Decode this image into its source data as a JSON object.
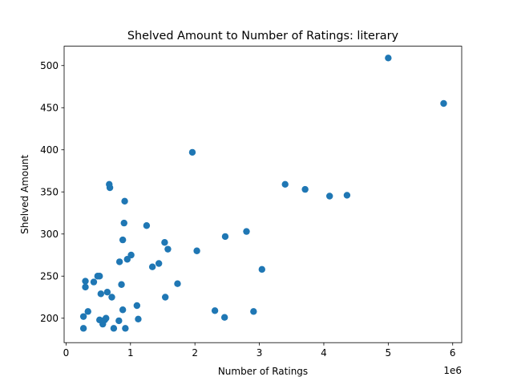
{
  "chart_data": {
    "type": "scatter",
    "title": "Shelved Amount to Number of Ratings: literary",
    "xlabel": "Number of Ratings",
    "ylabel": "Shelved Amount",
    "x_offset_label": "1e6",
    "xlim": [
      -30000,
      6140000
    ],
    "ylim": [
      171,
      523
    ],
    "xticks": [
      0,
      1000000,
      2000000,
      3000000,
      4000000,
      5000000,
      6000000
    ],
    "xtick_labels": [
      "0",
      "1",
      "2",
      "3",
      "4",
      "5",
      "6"
    ],
    "yticks": [
      200,
      250,
      300,
      350,
      400,
      450,
      500
    ],
    "ytick_labels": [
      "200",
      "250",
      "300",
      "350",
      "400",
      "450",
      "500"
    ],
    "grid": false,
    "legend": "none",
    "marker_color": "#1f77b4",
    "series": [
      {
        "points": [
          [
            270000,
            188
          ],
          [
            270000,
            202
          ],
          [
            300000,
            237
          ],
          [
            300000,
            244
          ],
          [
            340000,
            208
          ],
          [
            430000,
            243
          ],
          [
            490000,
            250
          ],
          [
            520000,
            250
          ],
          [
            520000,
            198
          ],
          [
            540000,
            229
          ],
          [
            570000,
            193
          ],
          [
            600000,
            198
          ],
          [
            620000,
            200
          ],
          [
            640000,
            231
          ],
          [
            670000,
            359
          ],
          [
            680000,
            355
          ],
          [
            710000,
            225
          ],
          [
            740000,
            188
          ],
          [
            820000,
            197
          ],
          [
            830000,
            267
          ],
          [
            860000,
            240
          ],
          [
            880000,
            293
          ],
          [
            880000,
            210
          ],
          [
            900000,
            313
          ],
          [
            910000,
            339
          ],
          [
            920000,
            188
          ],
          [
            950000,
            270
          ],
          [
            1010000,
            275
          ],
          [
            1100000,
            215
          ],
          [
            1120000,
            199
          ],
          [
            1250000,
            310
          ],
          [
            1340000,
            261
          ],
          [
            1440000,
            265
          ],
          [
            1530000,
            290
          ],
          [
            1540000,
            225
          ],
          [
            1580000,
            282
          ],
          [
            1730000,
            241
          ],
          [
            1960000,
            397
          ],
          [
            2030000,
            280
          ],
          [
            2310000,
            209
          ],
          [
            2460000,
            201
          ],
          [
            2470000,
            297
          ],
          [
            2800000,
            303
          ],
          [
            2910000,
            208
          ],
          [
            3040000,
            258
          ],
          [
            3400000,
            359
          ],
          [
            3710000,
            353
          ],
          [
            4090000,
            345
          ],
          [
            4360000,
            346
          ],
          [
            5000000,
            509
          ],
          [
            5860000,
            455
          ]
        ]
      }
    ]
  }
}
